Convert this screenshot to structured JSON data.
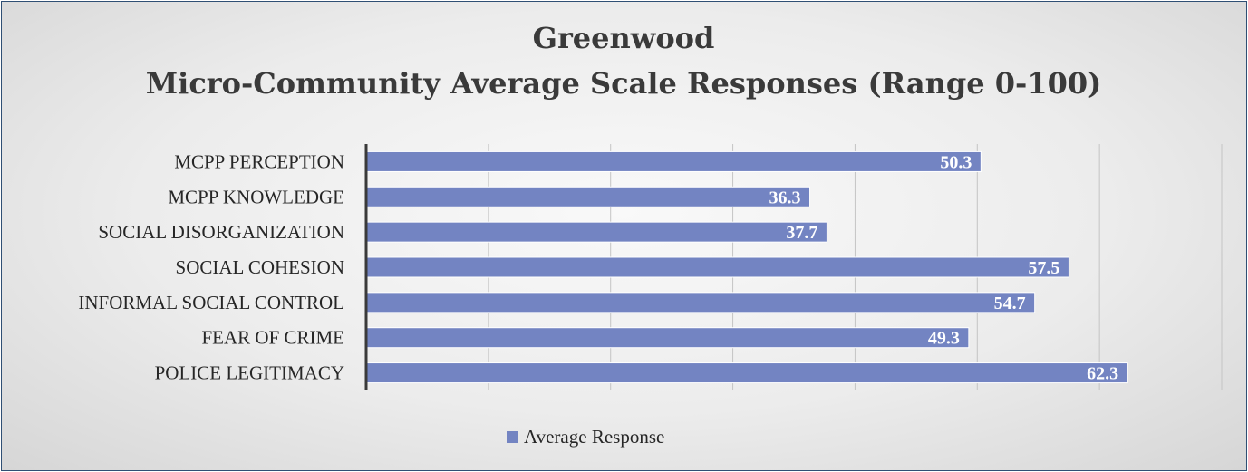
{
  "chart_data": {
    "type": "bar",
    "orientation": "horizontal",
    "title": "Greenwood",
    "subtitle": "Micro-Community Average Scale Responses (Range 0-100)",
    "categories": [
      "MCPP PERCEPTION",
      "MCPP KNOWLEDGE",
      "SOCIAL DISORGANIZATION",
      "SOCIAL COHESION",
      "INFORMAL SOCIAL CONTROL",
      "FEAR OF CRIME",
      "POLICE LEGITIMACY"
    ],
    "series": [
      {
        "name": "Average Response",
        "values": [
          50.3,
          36.3,
          37.7,
          57.5,
          54.7,
          49.3,
          62.3
        ]
      }
    ],
    "xlim": [
      0,
      70
    ],
    "grid": true,
    "legend": "bottom",
    "colors": {
      "bar": "#7384c2",
      "bar_edge": "#ffffff",
      "axis": "#3a3a3a",
      "grid": "#c4c4c4",
      "frame": "#2f4f74"
    }
  }
}
